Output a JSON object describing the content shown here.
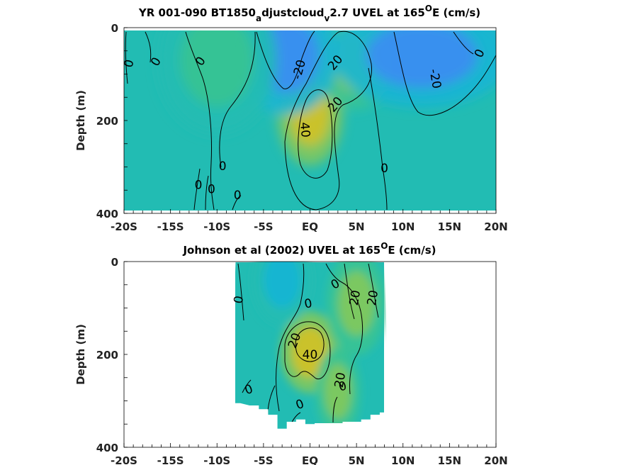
{
  "chart_data": [
    {
      "type": "heatmap",
      "title_parts": [
        {
          "text": "YR 001-090 BT1850",
          "baseline": "normal"
        },
        {
          "text": "a",
          "baseline": "sub"
        },
        {
          "text": "djustcloud",
          "baseline": "normal"
        },
        {
          "text": "v",
          "baseline": "sub"
        },
        {
          "text": "2.7 UVEL at 165",
          "baseline": "normal"
        },
        {
          "text": "O",
          "baseline": "super"
        },
        {
          "text": "E (cm/s)",
          "baseline": "normal"
        }
      ],
      "xlabel": "",
      "ylabel": "Depth (m)",
      "xlim": [
        -20,
        20
      ],
      "ylim": [
        400,
        0
      ],
      "y_reversed": true,
      "x_ticks": [
        -20,
        -15,
        -10,
        -5,
        0,
        5,
        10,
        15,
        20
      ],
      "x_tick_labels": [
        "-20S",
        "-15S",
        "-10S",
        "-5S",
        "EQ",
        "5N",
        "10N",
        "15N",
        "20N"
      ],
      "y_ticks": [
        0,
        200,
        400
      ],
      "y_tick_labels": [
        "0",
        "200",
        "400"
      ],
      "data_extent": {
        "lat": [
          -20,
          20
        ],
        "depth_bottom": 395
      },
      "colormap": [
        "#3a8ff0",
        "#22a7e6",
        "#19b5d4",
        "#22bcb3",
        "#38c393",
        "#7fc85e",
        "#b4c73a",
        "#cfc227"
      ],
      "color_range": [
        -35,
        50
      ],
      "features": [
        {
          "kind": "core",
          "lat": 0.0,
          "depth": 185,
          "value": 48,
          "lat_width": 2.2,
          "depth_width": 70
        },
        {
          "kind": "core",
          "lat": 4.8,
          "depth": 80,
          "value": 28,
          "lat_width": 2.5,
          "depth_width": 60
        },
        {
          "kind": "core",
          "lat": -2.5,
          "depth": 60,
          "value": -30,
          "lat_width": 3.5,
          "depth_width": 80
        },
        {
          "kind": "core",
          "lat": 12.0,
          "depth": 60,
          "value": -30,
          "lat_width": 6.0,
          "depth_width": 70
        },
        {
          "kind": "core",
          "lat": -10.0,
          "depth": 70,
          "value": 8,
          "lat_width": 4.0,
          "depth_width": 100
        }
      ],
      "contour_labels": [
        {
          "text": "0",
          "lat": -19.5,
          "depth": 77,
          "angle": -75
        },
        {
          "text": "0",
          "lat": -16.6,
          "depth": 73,
          "angle": -60
        },
        {
          "text": "0",
          "lat": -11.8,
          "depth": 72,
          "angle": -55
        },
        {
          "text": "-20",
          "lat": -1.2,
          "depth": 90,
          "angle": -75
        },
        {
          "text": "20",
          "lat": 2.7,
          "depth": 75,
          "angle": -50
        },
        {
          "text": "20",
          "lat": 2.7,
          "depth": 165,
          "angle": -50
        },
        {
          "text": "40",
          "lat": -0.5,
          "depth": 220,
          "angle": 85
        },
        {
          "text": "-20",
          "lat": 13.5,
          "depth": 110,
          "angle": 80
        },
        {
          "text": "0",
          "lat": 18.2,
          "depth": 55,
          "angle": -65
        },
        {
          "text": "0",
          "lat": -9.4,
          "depth": 298,
          "angle": 0
        },
        {
          "text": "0",
          "lat": -12.0,
          "depth": 338,
          "angle": 0
        },
        {
          "text": "0",
          "lat": -10.6,
          "depth": 347,
          "angle": 0
        },
        {
          "text": "0",
          "lat": -7.8,
          "depth": 360,
          "angle": 0
        },
        {
          "text": "0",
          "lat": 8.0,
          "depth": 302,
          "angle": 0
        }
      ]
    },
    {
      "type": "heatmap",
      "title_parts": [
        {
          "text": "Johnson et al (2002) UVEL at 165",
          "baseline": "normal"
        },
        {
          "text": "O",
          "baseline": "super"
        },
        {
          "text": "E (cm/s)",
          "baseline": "normal"
        }
      ],
      "xlabel": "",
      "ylabel": "Depth (m)",
      "xlim": [
        -20,
        20
      ],
      "ylim": [
        400,
        0
      ],
      "y_reversed": true,
      "x_ticks": [
        -20,
        -15,
        -10,
        -5,
        0,
        5,
        10,
        15,
        20
      ],
      "x_tick_labels": [
        "-20S",
        "-15S",
        "-10S",
        "-5S",
        "EQ",
        "5N",
        "10N",
        "15N",
        "20N"
      ],
      "y_ticks": [
        0,
        200,
        400
      ],
      "y_tick_labels": [
        "0",
        "200",
        "400"
      ],
      "data_extent": {
        "lat": [
          -8,
          8
        ],
        "bottom_profile": [
          [
            -8,
            305
          ],
          [
            -6,
            310
          ],
          [
            -5,
            318
          ],
          [
            -4,
            330
          ],
          [
            -3,
            360
          ],
          [
            -2,
            345
          ],
          [
            -1,
            340
          ],
          [
            0,
            350
          ],
          [
            1,
            348
          ],
          [
            2,
            348
          ],
          [
            3,
            348
          ],
          [
            4,
            345
          ],
          [
            5,
            345
          ],
          [
            6,
            340
          ],
          [
            7,
            330
          ],
          [
            8,
            325
          ]
        ]
      },
      "colormap": [
        "#3a8ff0",
        "#22a7e6",
        "#19b5d4",
        "#22bcb3",
        "#38c393",
        "#7fc85e",
        "#b4c73a",
        "#cfc227"
      ],
      "color_range": [
        -35,
        50
      ],
      "features": [
        {
          "kind": "core",
          "lat": 0.0,
          "depth": 195,
          "value": 45,
          "lat_width": 2.0,
          "depth_width": 55
        },
        {
          "kind": "core",
          "lat": 5.0,
          "depth": 90,
          "value": 28,
          "lat_width": 2.0,
          "depth_width": 70
        },
        {
          "kind": "core",
          "lat": -3.0,
          "depth": 40,
          "value": -8,
          "lat_width": 2.0,
          "depth_width": 60
        },
        {
          "kind": "core",
          "lat": 3.0,
          "depth": 280,
          "value": 22,
          "lat_width": 1.5,
          "depth_width": 60
        }
      ],
      "contour_labels": [
        {
          "text": "0",
          "lat": -7.7,
          "depth": 82,
          "angle": -80
        },
        {
          "text": "0",
          "lat": -0.2,
          "depth": 90,
          "angle": -10
        },
        {
          "text": "0",
          "lat": 2.7,
          "depth": 48,
          "angle": -30
        },
        {
          "text": "20",
          "lat": 4.8,
          "depth": 78,
          "angle": -80
        },
        {
          "text": "20",
          "lat": 6.7,
          "depth": 78,
          "angle": -80
        },
        {
          "text": "20",
          "lat": -1.7,
          "depth": 170,
          "angle": -70
        },
        {
          "text": "40",
          "lat": 0.0,
          "depth": 200,
          "angle": 0
        },
        {
          "text": "20",
          "lat": 3.2,
          "depth": 255,
          "angle": -80
        },
        {
          "text": "0",
          "lat": 3.5,
          "depth": 268,
          "angle": -15
        },
        {
          "text": "0",
          "lat": -6.6,
          "depth": 275,
          "angle": -20
        },
        {
          "text": "0",
          "lat": -1.1,
          "depth": 307,
          "angle": -20
        }
      ]
    }
  ]
}
